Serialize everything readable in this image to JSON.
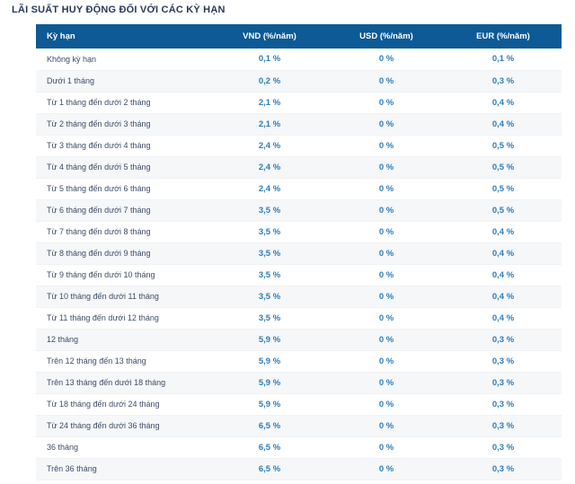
{
  "page": {
    "title": "LÃI SUẤT HUY ĐỘNG ĐỐI VỚI CÁC KỲ HẠN"
  },
  "colors": {
    "header_bg": "#0d5a96",
    "header_text": "#ffffff",
    "value_text": "#2e7cb8",
    "term_text": "#3e4c66",
    "title_text": "#28395a",
    "row_alt_bg": "#f5f7f9"
  },
  "table": {
    "columns": [
      "Kỳ hạn",
      "VND (%/năm)",
      "USD (%/năm)",
      "EUR (%/năm)"
    ],
    "rows": [
      {
        "term": "Không kỳ hạn",
        "vnd": "0,1 %",
        "usd": "0 %",
        "eur": "0,1 %"
      },
      {
        "term": "Dưới 1 tháng",
        "vnd": "0,2 %",
        "usd": "0 %",
        "eur": "0,3 %"
      },
      {
        "term": "Từ 1 tháng đến dưới 2 tháng",
        "vnd": "2,1 %",
        "usd": "0 %",
        "eur": "0,4 %"
      },
      {
        "term": "Từ 2 tháng đến dưới 3 tháng",
        "vnd": "2,1 %",
        "usd": "0 %",
        "eur": "0,4 %"
      },
      {
        "term": "Từ 3 tháng đến dưới 4 tháng",
        "vnd": "2,4 %",
        "usd": "0 %",
        "eur": "0,5 %"
      },
      {
        "term": "Từ 4 tháng đến dưới 5 tháng",
        "vnd": "2,4 %",
        "usd": "0 %",
        "eur": "0,5 %"
      },
      {
        "term": "Từ 5 tháng đến dưới 6 tháng",
        "vnd": "2,4 %",
        "usd": "0 %",
        "eur": "0,5 %"
      },
      {
        "term": "Từ 6 tháng đến dưới 7 tháng",
        "vnd": "3,5 %",
        "usd": "0 %",
        "eur": "0,5 %"
      },
      {
        "term": "Từ 7 tháng đến dưới 8 tháng",
        "vnd": "3,5 %",
        "usd": "0 %",
        "eur": "0,4 %"
      },
      {
        "term": "Từ 8 tháng đến dưới 9 tháng",
        "vnd": "3,5 %",
        "usd": "0 %",
        "eur": "0,4 %"
      },
      {
        "term": "Từ 9 tháng đến dưới 10 tháng",
        "vnd": "3,5 %",
        "usd": "0 %",
        "eur": "0,4 %"
      },
      {
        "term": "Từ 10 tháng đến dưới 11 tháng",
        "vnd": "3,5 %",
        "usd": "0 %",
        "eur": "0,4 %"
      },
      {
        "term": "Từ 11 tháng đến dưới 12 tháng",
        "vnd": "3,5 %",
        "usd": "0 %",
        "eur": "0,4 %"
      },
      {
        "term": "12 tháng",
        "vnd": "5,9 %",
        "usd": "0 %",
        "eur": "0,3 %"
      },
      {
        "term": "Trên 12 tháng đến 13 tháng",
        "vnd": "5,9 %",
        "usd": "0 %",
        "eur": "0,3 %"
      },
      {
        "term": "Trên 13 tháng đến dưới 18 tháng",
        "vnd": "5,9 %",
        "usd": "0 %",
        "eur": "0,3 %"
      },
      {
        "term": "Từ 18 tháng đến dưới 24 tháng",
        "vnd": "5,9 %",
        "usd": "0 %",
        "eur": "0,3 %"
      },
      {
        "term": "Từ 24 tháng đến dưới 36 tháng",
        "vnd": "6,5 %",
        "usd": "0 %",
        "eur": "0,3 %"
      },
      {
        "term": "36 tháng",
        "vnd": "6,5 %",
        "usd": "0 %",
        "eur": "0,3 %"
      },
      {
        "term": "Trên 36 tháng",
        "vnd": "6,5 %",
        "usd": "0 %",
        "eur": "0,3 %"
      }
    ]
  }
}
